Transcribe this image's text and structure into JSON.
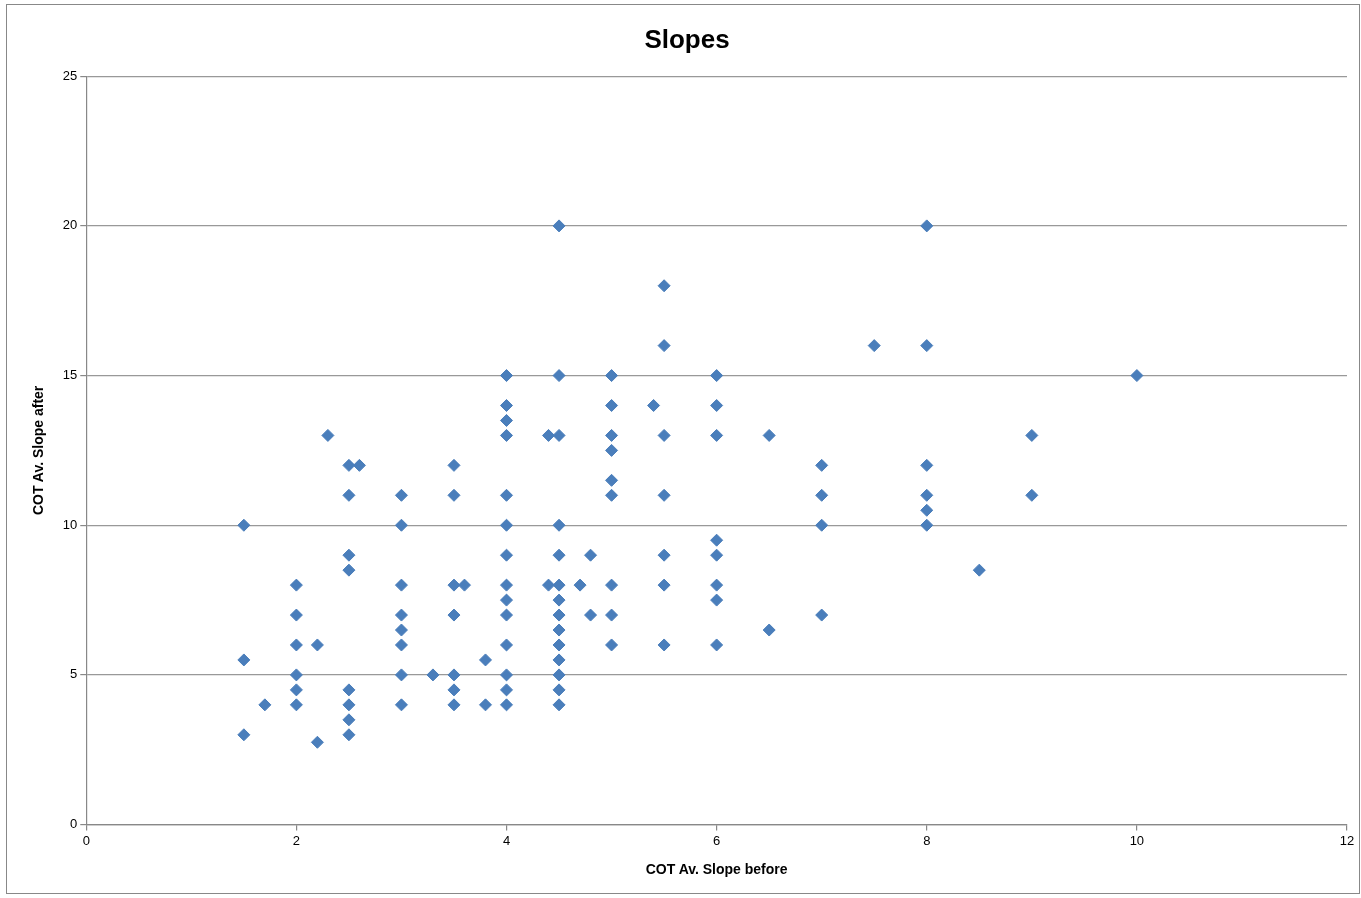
{
  "chart_data": {
    "type": "scatter",
    "title": "Slopes",
    "xlabel": "COT Av. Slope before",
    "ylabel": "COT Av. Slope after",
    "x": [
      1.5,
      1.5,
      1.5,
      1.7,
      2,
      2,
      2,
      2,
      2,
      2,
      2.2,
      2.2,
      2.3,
      2.5,
      2.5,
      2.5,
      2.5,
      2.5,
      2.5,
      2.5,
      2.5,
      2.6,
      3,
      3,
      3,
      3,
      3,
      3,
      3,
      3,
      3.3,
      3.5,
      3.5,
      3.5,
      3.5,
      3.5,
      3.5,
      3.5,
      3.6,
      3.8,
      3.8,
      4,
      4,
      4,
      4,
      4,
      4,
      4,
      4,
      4,
      4,
      4,
      4,
      4,
      4,
      4.4,
      4.4,
      4.5,
      4.5,
      4.5,
      4.5,
      4.5,
      4.5,
      4.5,
      4.5,
      4.5,
      4.5,
      4.5,
      4.5,
      4.5,
      4.5,
      4.7,
      4.8,
      4.8,
      5,
      5,
      5,
      5,
      5,
      5,
      5,
      5,
      5,
      5.4,
      5.5,
      5.5,
      5.5,
      5.5,
      5.5,
      5.5,
      5.5,
      6,
      6,
      6,
      6,
      6,
      6,
      6,
      6,
      6.5,
      6.5,
      7,
      7,
      7,
      7,
      7.5,
      8,
      8,
      8,
      8,
      8,
      8,
      8.5,
      9,
      9,
      10
    ],
    "values": [
      10,
      5.5,
      3,
      4,
      8,
      7,
      6,
      5,
      4.5,
      4,
      6,
      2.75,
      13,
      12,
      11,
      9,
      8.5,
      4.5,
      4,
      3.5,
      3,
      12,
      11,
      10,
      8,
      7,
      6.5,
      6,
      5,
      4,
      5,
      12,
      11,
      8,
      7,
      5,
      4.5,
      4,
      8,
      5.5,
      4,
      15,
      14,
      13.5,
      13,
      11,
      10,
      9,
      8,
      7.5,
      7,
      6,
      5,
      4.5,
      4,
      13,
      8,
      20,
      15,
      13,
      10,
      9,
      8,
      7.5,
      7,
      6.5,
      6,
      5.5,
      5,
      4.5,
      4,
      8,
      9,
      7,
      15,
      14,
      13,
      12.5,
      11.5,
      11,
      8,
      7,
      6,
      14,
      18,
      16,
      13,
      11,
      9,
      8,
      6,
      15,
      14,
      13,
      9.5,
      9,
      8,
      7.5,
      6,
      13,
      6.5,
      12,
      11,
      10,
      7,
      16,
      20,
      16,
      12,
      11,
      10.5,
      10,
      8.5,
      13,
      11,
      15
    ],
    "color": "#4a7ebb",
    "marker": "diamond",
    "xlim": [
      0,
      12
    ],
    "xticks": [
      0,
      2,
      4,
      6,
      8,
      10,
      12
    ],
    "ylim": [
      0,
      25
    ],
    "yticks": [
      0,
      5,
      10,
      15,
      20,
      25
    ],
    "grid": "y",
    "legend": false
  }
}
